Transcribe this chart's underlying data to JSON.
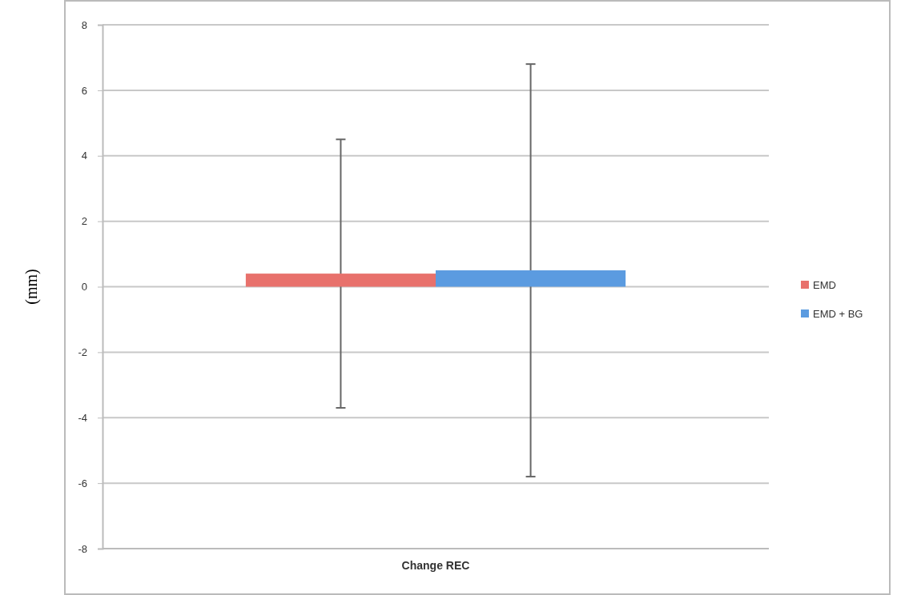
{
  "chart_data": {
    "type": "bar",
    "ylabel": "(mm)",
    "categories": [
      "Change REC"
    ],
    "series": [
      {
        "name": "EMD",
        "color": "#e8716c",
        "values": [
          0.4
        ],
        "errors": [
          4.1
        ]
      },
      {
        "name": "EMD + BG",
        "color": "#5b9be0",
        "values": [
          0.5
        ],
        "errors": [
          6.3
        ]
      }
    ],
    "ylim": [
      -8,
      8
    ],
    "yticks": [
      -8,
      -6,
      -4,
      -2,
      0,
      2,
      4,
      6,
      8
    ],
    "grid": "y",
    "legend": "right"
  }
}
